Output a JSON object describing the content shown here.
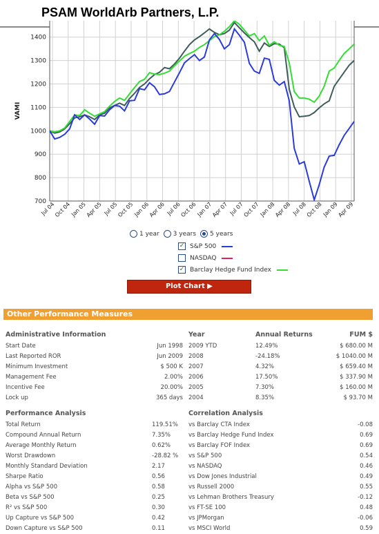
{
  "page_title": "PSAM WorldArb Partners, L.P.",
  "chart_data": {
    "type": "line",
    "ylabel": "VAMI",
    "ylim": [
      700,
      1470
    ],
    "yticks": [
      700,
      800,
      900,
      1000,
      1100,
      1200,
      1300,
      1400
    ],
    "xticks": [
      "Jul 04",
      "Oct 04",
      "Jan 05",
      "Apr 05",
      "Jul 05",
      "Oct 05",
      "Jan 06",
      "Apr 06",
      "Jul 06",
      "Oct 06",
      "Jan 07",
      "Apr 07",
      "Jul 07",
      "Oct 07",
      "Jan 08",
      "Apr 08",
      "Jul 08",
      "Oct 08",
      "Jan 09",
      "Apr 09"
    ],
    "grid": true,
    "x": [
      0,
      1,
      2,
      3,
      4,
      5,
      6,
      7,
      8,
      9,
      10,
      11,
      12,
      13,
      14,
      15,
      16,
      17,
      18,
      19,
      20,
      21,
      22,
      23,
      24,
      25,
      26,
      27,
      28,
      29,
      30,
      31,
      32,
      33,
      34,
      35,
      36,
      37,
      38,
      39,
      40,
      41,
      42,
      43,
      44,
      45,
      46,
      47,
      48,
      49,
      50,
      51,
      52,
      53,
      54,
      55,
      56,
      57,
      58,
      59,
      60,
      61
    ],
    "series": [
      {
        "name": "S&P 500",
        "color": "#2a3bd8",
        "values": [
          1000,
          965,
          972,
          985,
          1008,
          1068,
          1048,
          1068,
          1050,
          1028,
          1065,
          1063,
          1090,
          1108,
          1105,
          1085,
          1128,
          1130,
          1180,
          1175,
          1205,
          1188,
          1155,
          1158,
          1168,
          1208,
          1248,
          1290,
          1308,
          1325,
          1300,
          1315,
          1388,
          1415,
          1390,
          1350,
          1368,
          1435,
          1408,
          1378,
          1288,
          1255,
          1245,
          1310,
          1305,
          1215,
          1195,
          1210,
          1128,
          925,
          858,
          868,
          785,
          705,
          770,
          845,
          892,
          895,
          940,
          980,
          1010,
          1040
        ]
      },
      {
        "name": "Barclay Hedge Fund Index",
        "color": "#33dd33",
        "values": [
          1000,
          995,
          1000,
          1012,
          1040,
          1068,
          1065,
          1090,
          1075,
          1062,
          1072,
          1082,
          1105,
          1125,
          1140,
          1130,
          1158,
          1185,
          1210,
          1220,
          1248,
          1242,
          1240,
          1246,
          1255,
          1278,
          1298,
          1318,
          1330,
          1340,
          1356,
          1368,
          1385,
          1402,
          1410,
          1425,
          1445,
          1470,
          1455,
          1430,
          1405,
          1415,
          1385,
          1405,
          1365,
          1380,
          1365,
          1360,
          1290,
          1168,
          1140,
          1140,
          1135,
          1122,
          1148,
          1190,
          1255,
          1268,
          1300,
          1330,
          1350,
          1370
        ]
      },
      {
        "name": "PSAM WorldArb Partners, L.P.",
        "color": "#3e5c5a",
        "values": [
          1000,
          990,
          995,
          1008,
          1030,
          1055,
          1060,
          1068,
          1060,
          1048,
          1068,
          1075,
          1098,
          1108,
          1118,
          1108,
          1138,
          1160,
          1185,
          1200,
          1222,
          1240,
          1250,
          1270,
          1265,
          1285,
          1310,
          1340,
          1368,
          1388,
          1402,
          1418,
          1435,
          1420,
          1410,
          1415,
          1430,
          1462,
          1440,
          1418,
          1398,
          1380,
          1340,
          1375,
          1360,
          1372,
          1370,
          1355,
          1178,
          1102,
          1060,
          1062,
          1065,
          1078,
          1098,
          1115,
          1128,
          1190,
          1220,
          1250,
          1280,
          1300
        ]
      }
    ]
  },
  "controls": {
    "radio": [
      "1 year",
      "3 years",
      "5 years"
    ],
    "radio_selected": 2,
    "series_options": [
      {
        "label": "S&P 500",
        "checked": true,
        "color": "#2a3bd8"
      },
      {
        "label": "NASDAQ",
        "checked": false,
        "color": "#e0205a"
      },
      {
        "label": "Barclay Hedge Fund Index",
        "checked": true,
        "color": "#33dd33"
      }
    ],
    "plot_button": "Plot Chart ▶"
  },
  "section_title": "Other Performance Measures",
  "admin": {
    "header": "Administrative Information",
    "rows": [
      [
        "Start Date",
        "Jun 1998"
      ],
      [
        "Last Reported ROR",
        "Jun 2009"
      ],
      [
        "Minimum Investment",
        "$ 500 K"
      ],
      [
        "Management Fee",
        "2.00%"
      ],
      [
        "Incentive Fee",
        "20.00%"
      ],
      [
        "Lock up",
        "365 days"
      ]
    ]
  },
  "returns": {
    "headers": [
      "Year",
      "Annual Returns",
      "FUM $"
    ],
    "rows": [
      [
        "2009 YTD",
        "12.49%",
        "$ 680.00 M"
      ],
      [
        "2008",
        "-24.18%",
        "$ 1040.00 M"
      ],
      [
        "2007",
        "4.32%",
        "$ 659.40 M"
      ],
      [
        "2006",
        "17.50%",
        "$ 337.90 M"
      ],
      [
        "2005",
        "7.30%",
        "$ 160.00 M"
      ],
      [
        "2004",
        "8.35%",
        "$ 93.70 M"
      ]
    ]
  },
  "performance": {
    "header": "Performance Analysis",
    "rows": [
      [
        "Total Return",
        "119.51%"
      ],
      [
        "Compound Annual Return",
        "7.35%"
      ],
      [
        "Average Monthly Return",
        "0.62%"
      ],
      [
        "Worst Drawdown",
        "-28.82 %"
      ],
      [
        "Monthly Standard Deviation",
        "2.17"
      ],
      [
        "Sharpe Ratio",
        "0.56"
      ],
      [
        "Alpha vs S&P 500",
        "0.58"
      ],
      [
        "Beta vs S&P 500",
        "0.25"
      ],
      [
        "R² vs S&P 500",
        "0.30"
      ],
      [
        "Up Capture vs S&P 500",
        "0.42"
      ],
      [
        "Down Capture vs S&P 500",
        "0.11"
      ]
    ]
  },
  "correlation": {
    "header": "Correlation Analysis",
    "rows": [
      [
        "vs Barclay CTA Index",
        "-0.08"
      ],
      [
        "vs Barclay Hedge Fund Index",
        "0.69"
      ],
      [
        "vs Barclay FOF Index",
        "0.69"
      ],
      [
        "vs S&P 500",
        "0.54"
      ],
      [
        "vs NASDAQ",
        "0.46"
      ],
      [
        "vs Dow Jones Industrial",
        "0.49"
      ],
      [
        "vs Russell 2000",
        "0.55"
      ],
      [
        "vs Lehman Brothers Treasury",
        "-0.12"
      ],
      [
        "vs FT-SE 100",
        "0.48"
      ],
      [
        "vs JPMorgan",
        "-0.06"
      ],
      [
        "vs MSCI World",
        "0.59"
      ]
    ]
  }
}
